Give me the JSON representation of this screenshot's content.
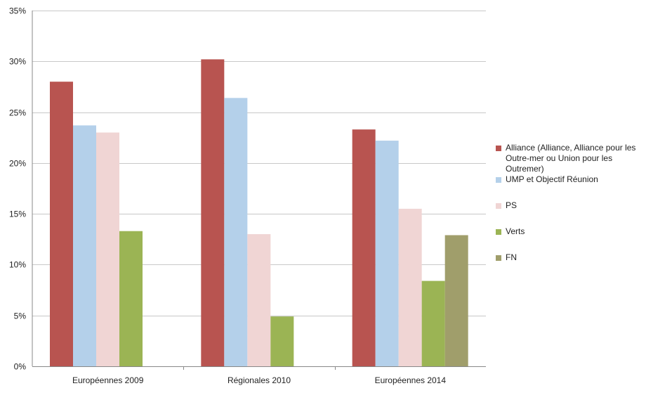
{
  "chart_data": {
    "type": "bar",
    "categories": [
      "Européennes 2009",
      "Régionales 2010",
      "Européennes 2014"
    ],
    "series": [
      {
        "name": "Alliance (Alliance, Alliance pour les Outre-mer ou Union pour les Outremer)",
        "color": "#b85450",
        "values": [
          28.0,
          30.2,
          23.3
        ]
      },
      {
        "name": "UMP et Objectif Réunion",
        "color": "#b4d0ea",
        "values": [
          23.7,
          26.4,
          22.2
        ]
      },
      {
        "name": "PS",
        "color": "#f0d5d4",
        "values": [
          23.0,
          13.0,
          15.5
        ]
      },
      {
        "name": "Verts",
        "color": "#9bb454",
        "values": [
          13.3,
          4.9,
          8.4
        ]
      },
      {
        "name": "FN",
        "color": "#a09e6b",
        "values": [
          null,
          null,
          12.9
        ]
      }
    ],
    "yticks": [
      "0%",
      "5%",
      "10%",
      "15%",
      "20%",
      "25%",
      "30%",
      "35%"
    ],
    "ylim": [
      0,
      35
    ],
    "grid": true,
    "legend_position": "right",
    "title": "",
    "xlabel": "",
    "ylabel": ""
  }
}
